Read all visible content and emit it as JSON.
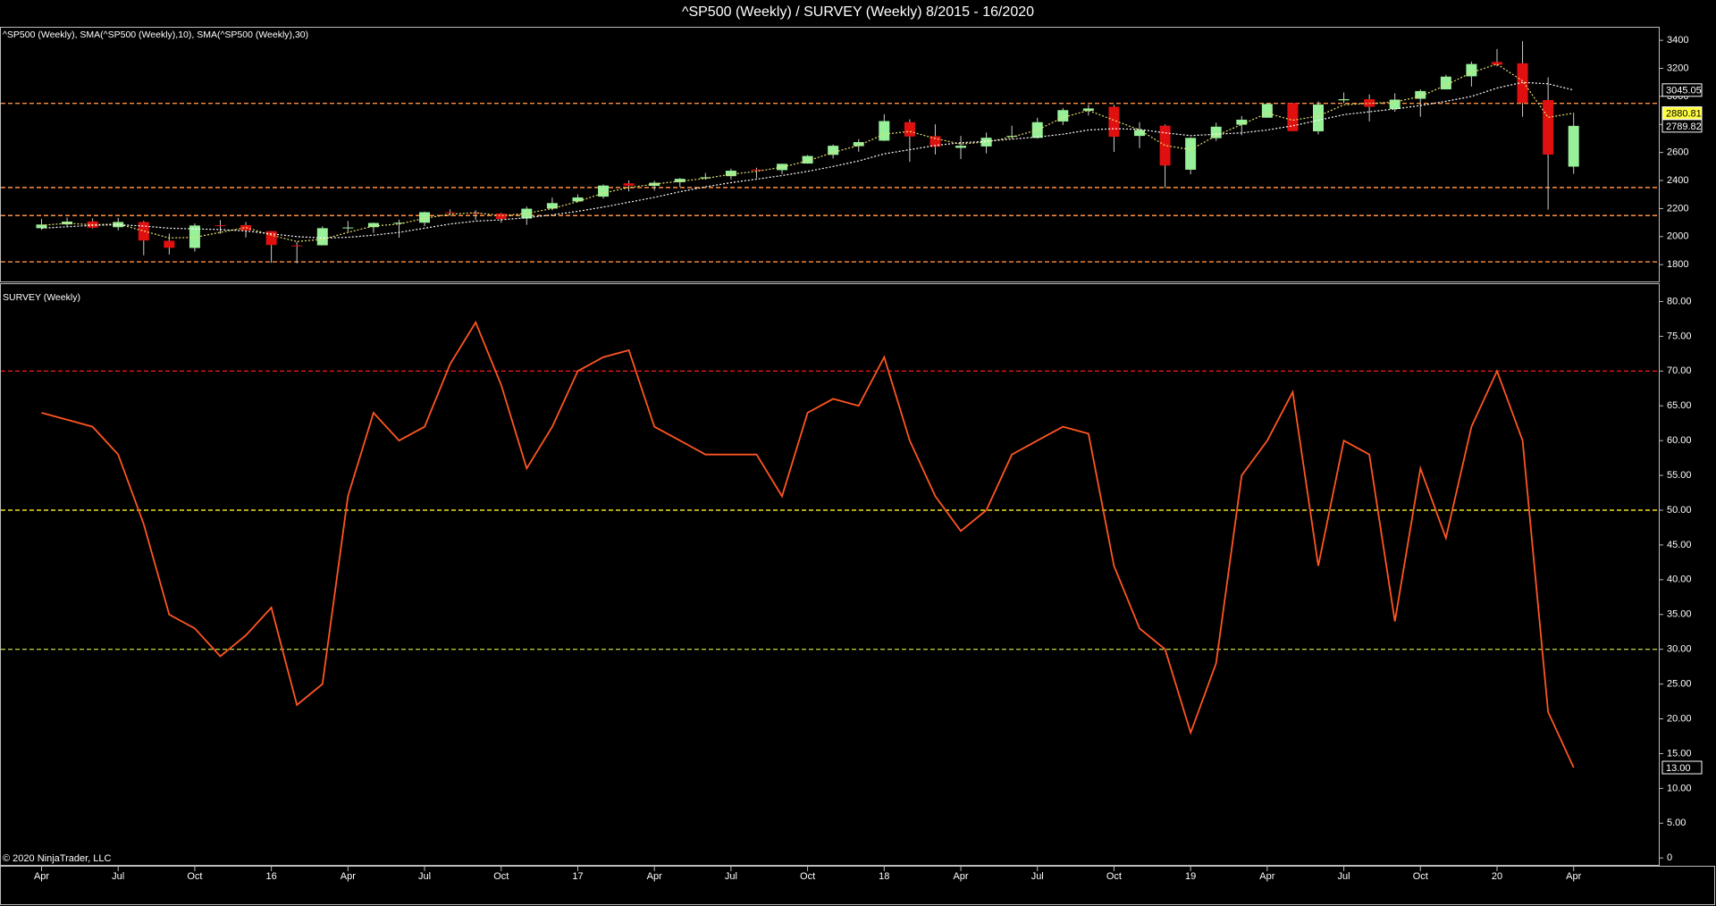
{
  "title": "^SP500 (Weekly) / SURVEY (Weekly)  8/2015 - 16/2020",
  "copyright": "© 2020 NinjaTrader, LLC",
  "chart_data": [
    {
      "type": "candlestick",
      "label": "^SP500 (Weekly), SMA(^SP500 (Weekly),10), SMA(^SP500 (Weekly),30)",
      "x": [
        "2015-04",
        "2015-05",
        "2015-06",
        "2015-07",
        "2015-08",
        "2015-09",
        "2015-10",
        "2015-11",
        "2015-12",
        "2016-01",
        "2016-02",
        "2016-03",
        "2016-04",
        "2016-05",
        "2016-06",
        "2016-07",
        "2016-08",
        "2016-09",
        "2016-10",
        "2016-11",
        "2016-12",
        "2017-01",
        "2017-02",
        "2017-03",
        "2017-04",
        "2017-05",
        "2017-06",
        "2017-07",
        "2017-08",
        "2017-09",
        "2017-10",
        "2017-11",
        "2017-12",
        "2018-01",
        "2018-02",
        "2018-03",
        "2018-04",
        "2018-05",
        "2018-06",
        "2018-07",
        "2018-08",
        "2018-09",
        "2018-10",
        "2018-11",
        "2018-12",
        "2019-01",
        "2019-02",
        "2019-03",
        "2019-04",
        "2019-05",
        "2019-06",
        "2019-07",
        "2019-08",
        "2019-09",
        "2019-10",
        "2019-11",
        "2019-12",
        "2020-01",
        "2020-02",
        "2020-03",
        "2020-04"
      ],
      "open": [
        2060,
        2087,
        2108,
        2067,
        2104,
        1970,
        1919,
        2081,
        2082,
        2039,
        1937,
        1938,
        2060,
        2067,
        2094,
        2099,
        2174,
        2170,
        2164,
        2129,
        2200,
        2251,
        2285,
        2380,
        2362,
        2388,
        2415,
        2431,
        2478,
        2474,
        2521,
        2583,
        2645,
        2684,
        2816,
        2716,
        2633,
        2643,
        2718,
        2704,
        2821,
        2897,
        2926,
        2718,
        2791,
        2477,
        2702,
        2798,
        2848,
        2952,
        2751,
        2972,
        2980,
        2910,
        2983,
        3050,
        3143,
        3245,
        3236,
        2974,
        2499
      ],
      "high": [
        2125,
        2135,
        2130,
        2133,
        2113,
        2021,
        2094,
        2117,
        2104,
        2039,
        1963,
        2073,
        2111,
        2100,
        2121,
        2178,
        2194,
        2188,
        2170,
        2214,
        2278,
        2301,
        2372,
        2401,
        2398,
        2418,
        2454,
        2484,
        2491,
        2519,
        2582,
        2657,
        2695,
        2873,
        2836,
        2801,
        2718,
        2742,
        2791,
        2848,
        2917,
        2941,
        2940,
        2816,
        2800,
        2708,
        2813,
        2860,
        2949,
        2954,
        2964,
        3028,
        3014,
        3022,
        3050,
        3154,
        3248,
        3338,
        3394,
        3136,
        2880
      ],
      "low": [
        2048,
        2067,
        2057,
        2044,
        1867,
        1872,
        1893,
        2020,
        1993,
        1812,
        1810,
        1937,
        2034,
        2026,
        1992,
        2074,
        2148,
        2119,
        2098,
        2084,
        2188,
        2245,
        2271,
        2322,
        2328,
        2353,
        2405,
        2407,
        2417,
        2446,
        2520,
        2557,
        2605,
        2682,
        2533,
        2586,
        2553,
        2594,
        2698,
        2698,
        2796,
        2864,
        2604,
        2631,
        2347,
        2444,
        2682,
        2723,
        2848,
        2751,
        2729,
        2952,
        2822,
        2891,
        2855,
        3050,
        3070,
        3214,
        2855,
        2192,
        2447
      ],
      "close": [
        2086,
        2107,
        2063,
        2104,
        1972,
        1920,
        2079,
        2080,
        2044,
        1940,
        1932,
        2060,
        2065,
        2097,
        2099,
        2174,
        2171,
        2168,
        2126,
        2199,
        2239,
        2279,
        2364,
        2363,
        2384,
        2412,
        2423,
        2470,
        2471,
        2519,
        2575,
        2648,
        2674,
        2824,
        2714,
        2641,
        2648,
        2705,
        2718,
        2816,
        2902,
        2914,
        2712,
        2760,
        2507,
        2704,
        2784,
        2834,
        2946,
        2752,
        2942,
        2980,
        2926,
        2977,
        3038,
        3141,
        3231,
        3226,
        2954,
        2585,
        2789.82
      ],
      "up_color": "#98f098",
      "down_color": "#e01010",
      "series": [
        {
          "color": "#e8e070",
          "values": [
            2080,
            2095,
            2085,
            2090,
            2040,
            1990,
            1995,
            2030,
            2065,
            2010,
            1965,
            1980,
            2030,
            2075,
            2090,
            2130,
            2160,
            2170,
            2150,
            2165,
            2200,
            2250,
            2310,
            2350,
            2375,
            2395,
            2415,
            2445,
            2465,
            2495,
            2540,
            2600,
            2650,
            2730,
            2750,
            2700,
            2660,
            2675,
            2710,
            2760,
            2850,
            2900,
            2830,
            2760,
            2650,
            2620,
            2720,
            2800,
            2880,
            2830,
            2860,
            2940,
            2950,
            2960,
            3000,
            3080,
            3170,
            3230,
            3110,
            2850,
            2880.81
          ],
          "label_bg": "#ffff40"
        },
        {
          "color": "#ffffff",
          "values": [
            2060,
            2070,
            2080,
            2085,
            2075,
            2060,
            2055,
            2050,
            2040,
            2020,
            2000,
            1990,
            1995,
            2010,
            2030,
            2060,
            2090,
            2110,
            2120,
            2135,
            2155,
            2180,
            2210,
            2245,
            2280,
            2320,
            2355,
            2385,
            2410,
            2435,
            2465,
            2500,
            2540,
            2590,
            2620,
            2650,
            2670,
            2680,
            2695,
            2710,
            2730,
            2760,
            2770,
            2765,
            2740,
            2720,
            2730,
            2740,
            2760,
            2790,
            2830,
            2870,
            2890,
            2910,
            2935,
            2965,
            3000,
            3060,
            3100,
            3090,
            3045.05
          ],
          "label_bg": "#ffffff"
        }
      ],
      "ylim": [
        1680,
        3490
      ],
      "yticks": [
        1800,
        2000,
        2200,
        2400,
        2600,
        2800,
        3000,
        3200,
        3400
      ],
      "ref_lines": [
        {
          "value": 2950,
          "color": "#ff9040"
        },
        {
          "value": 2350,
          "color": "#ff9040"
        },
        {
          "value": 2150,
          "color": "#ff9040"
        },
        {
          "value": 1820,
          "color": "#ff9040"
        }
      ]
    },
    {
      "type": "line",
      "label": "SURVEY (Weekly)",
      "x": [
        "2015-04",
        "2015-05",
        "2015-06",
        "2015-07",
        "2015-08",
        "2015-09",
        "2015-10",
        "2015-11",
        "2015-12",
        "2016-01",
        "2016-02",
        "2016-03",
        "2016-04",
        "2016-05",
        "2016-06",
        "2016-07",
        "2016-08",
        "2016-09",
        "2016-10",
        "2016-11",
        "2016-12",
        "2017-01",
        "2017-02",
        "2017-03",
        "2017-04",
        "2017-05",
        "2017-06",
        "2017-07",
        "2017-08",
        "2017-09",
        "2017-10",
        "2017-11",
        "2017-12",
        "2018-01",
        "2018-02",
        "2018-03",
        "2018-04",
        "2018-05",
        "2018-06",
        "2018-07",
        "2018-08",
        "2018-09",
        "2018-10",
        "2018-11",
        "2018-12",
        "2019-01",
        "2019-02",
        "2019-03",
        "2019-04",
        "2019-05",
        "2019-06",
        "2019-07",
        "2019-08",
        "2019-09",
        "2019-10",
        "2019-11",
        "2019-12",
        "2020-01",
        "2020-02",
        "2020-03",
        "2020-04"
      ],
      "series": [
        {
          "color": "#ff5522",
          "values": [
            64,
            63,
            62,
            58,
            48,
            35,
            33,
            29,
            32,
            36,
            22,
            25,
            52,
            64,
            60,
            62,
            71,
            77,
            68,
            56,
            62,
            70,
            72,
            73,
            62,
            60,
            58,
            58,
            58,
            52,
            64,
            66,
            65,
            72,
            60,
            52,
            47,
            50,
            58,
            60,
            62,
            61,
            42,
            33,
            30,
            18,
            28,
            55,
            60,
            67,
            42,
            60,
            58,
            34,
            56,
            46,
            62,
            70,
            60,
            21,
            13
          ],
          "last_label": "13.00"
        }
      ],
      "ylim": [
        -1,
        82.5
      ],
      "yticks": [
        0,
        {
          "value": 5,
          "label": "5.00"
        },
        {
          "value": 10,
          "label": "10.00"
        },
        {
          "value": 15,
          "label": "15.00"
        },
        {
          "value": 20,
          "label": "20.00"
        },
        {
          "value": 25,
          "label": "25.00"
        },
        {
          "value": 30,
          "label": "30.00"
        },
        {
          "value": 35,
          "label": "35.00"
        },
        {
          "value": 40,
          "label": "40.00"
        },
        {
          "value": 45,
          "label": "45.00"
        },
        {
          "value": 50,
          "label": "50.00"
        },
        {
          "value": 55,
          "label": "55.00"
        },
        {
          "value": 60,
          "label": "60.00"
        },
        {
          "value": 65,
          "label": "65.00"
        },
        {
          "value": 70,
          "label": "70.00"
        },
        {
          "value": 75,
          "label": "75.00"
        },
        {
          "value": 80,
          "label": "80.00"
        }
      ],
      "ref_lines": [
        {
          "value": 70,
          "color": "#e01818"
        },
        {
          "value": 50,
          "color": "#f0e020"
        },
        {
          "value": 30,
          "color": "#b0c840"
        }
      ],
      "xticks": [
        {
          "value": "2015-04",
          "label": "Apr"
        },
        {
          "value": "2015-07",
          "label": "Jul"
        },
        {
          "value": "2015-10",
          "label": "Oct"
        },
        {
          "value": "2016-01",
          "label": "16"
        },
        {
          "value": "2016-04",
          "label": "Apr"
        },
        {
          "value": "2016-07",
          "label": "Jul"
        },
        {
          "value": "2016-10",
          "label": "Oct"
        },
        {
          "value": "2017-01",
          "label": "17"
        },
        {
          "value": "2017-04",
          "label": "Apr"
        },
        {
          "value": "2017-07",
          "label": "Jul"
        },
        {
          "value": "2017-10",
          "label": "Oct"
        },
        {
          "value": "2018-01",
          "label": "18"
        },
        {
          "value": "2018-04",
          "label": "Apr"
        },
        {
          "value": "2018-07",
          "label": "Jul"
        },
        {
          "value": "2018-10",
          "label": "Oct"
        },
        {
          "value": "2019-01",
          "label": "19"
        },
        {
          "value": "2019-04",
          "label": "Apr"
        },
        {
          "value": "2019-07",
          "label": "Jul"
        },
        {
          "value": "2019-10",
          "label": "Oct"
        },
        {
          "value": "2020-01",
          "label": "20"
        },
        {
          "value": "2020-04",
          "label": "Apr"
        }
      ]
    }
  ]
}
